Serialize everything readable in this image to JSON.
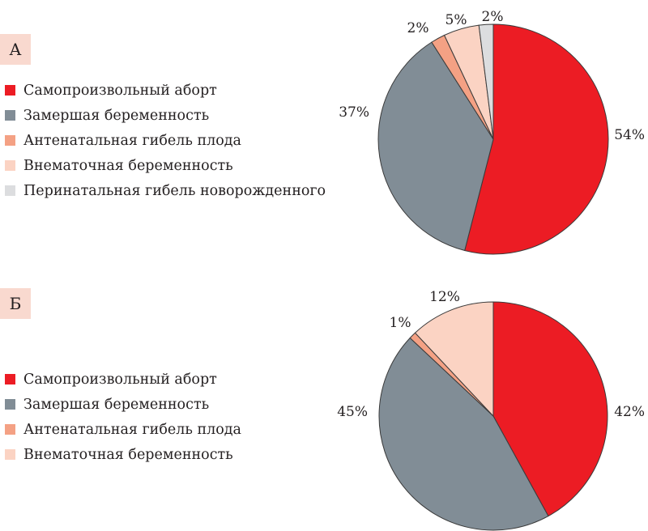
{
  "chart_data": [
    {
      "type": "pie",
      "panel": "А",
      "categories": [
        "Самопроизвольный аборт",
        "Замершая беременность",
        "Антенатальная гибель плода",
        "Внематочная беременность",
        "Перинатальная гибель новорожденного"
      ],
      "values": [
        54,
        37,
        2,
        5,
        2
      ],
      "labels": [
        "54%",
        "37%",
        "2%",
        "5%",
        "2%"
      ],
      "colors": [
        "#ec1c24",
        "#818d96",
        "#f4a184",
        "#fbd3c3",
        "#dcdddf"
      ],
      "legend": "left"
    },
    {
      "type": "pie",
      "panel": "Б",
      "categories": [
        "Самопроизвольный аборт",
        "Замершая беременность",
        "Антенатальная гибель плода",
        "Внематочная беременность"
      ],
      "values": [
        42,
        45,
        1,
        12
      ],
      "labels": [
        "42%",
        "45%",
        "1%",
        "12%"
      ],
      "colors": [
        "#ec1c24",
        "#818d96",
        "#f4a184",
        "#fbd3c3"
      ],
      "legend": "left"
    }
  ]
}
